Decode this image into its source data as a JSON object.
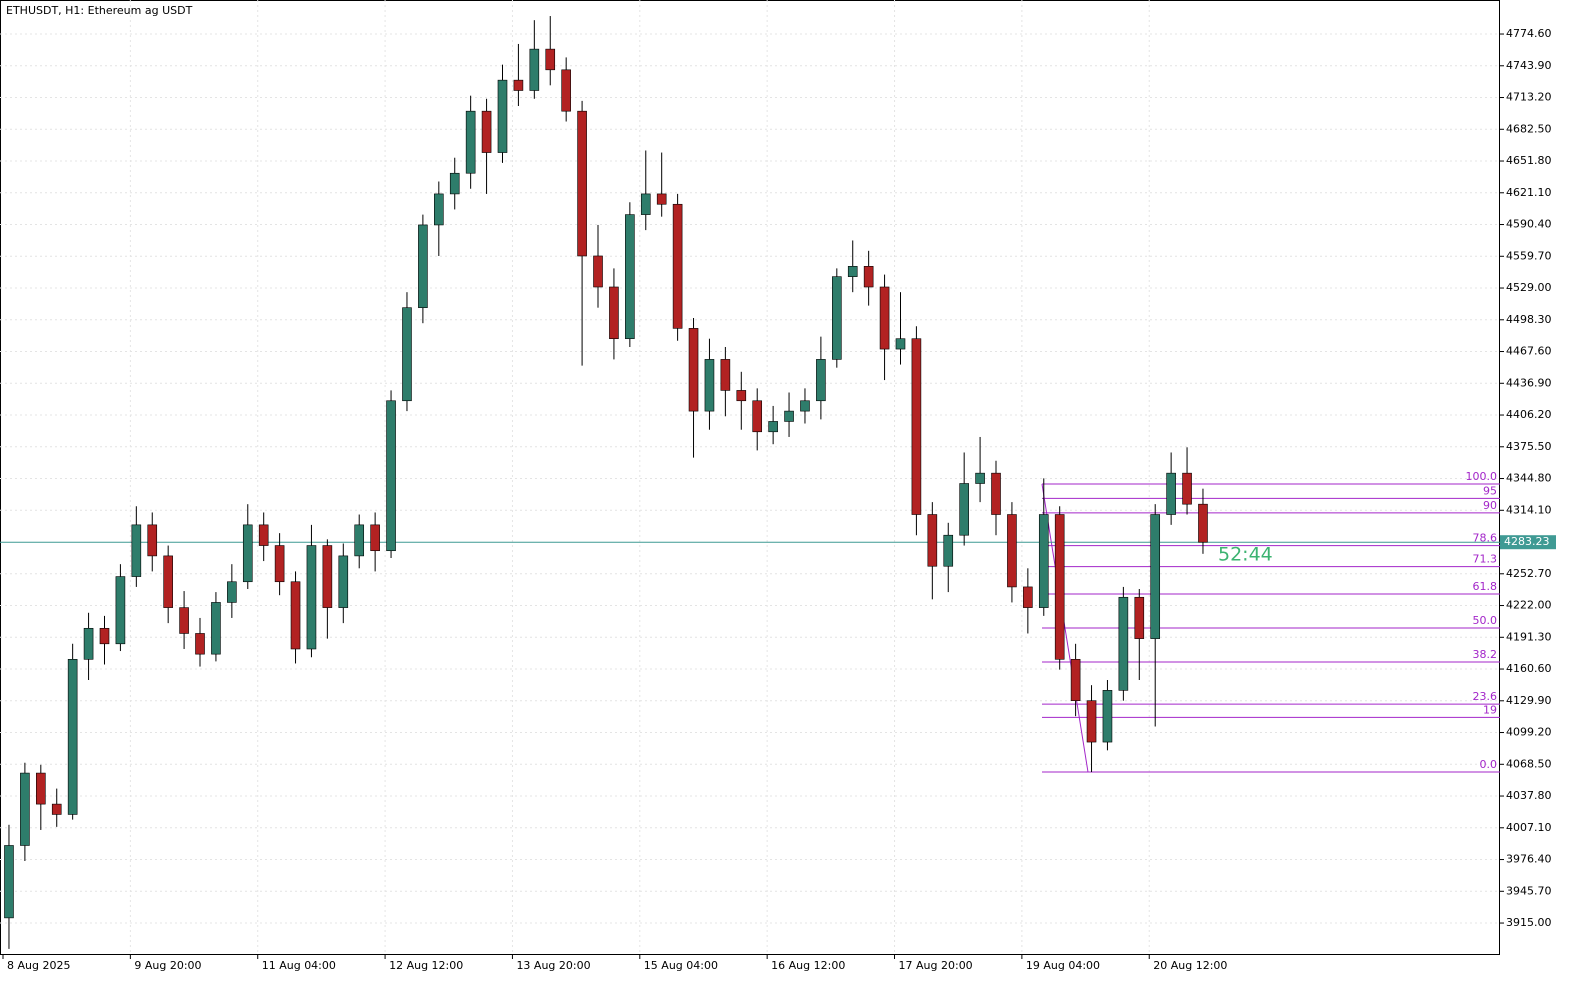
{
  "chart_data": {
    "type": "candlestick",
    "title": "ETHUSDT, H1:  Ethereum ag USDT",
    "up_color": "#2e7d6b",
    "down_color": "#b22222",
    "wick_color": "#000000",
    "ylim": [
      3884.1,
      4807.5
    ],
    "yticks": [
      {
        "value": 3915,
        "label": "3915.00"
      },
      {
        "value": 3945.7,
        "label": "3945.70"
      },
      {
        "value": 3976.4,
        "label": "3976.40"
      },
      {
        "value": 4007.1,
        "label": "4007.10"
      },
      {
        "value": 4037.8,
        "label": "4037.80"
      },
      {
        "value": 4068.5,
        "label": "4068.50"
      },
      {
        "value": 4099.2,
        "label": "4099.20"
      },
      {
        "value": 4129.9,
        "label": "4129.90"
      },
      {
        "value": 4160.6,
        "label": "4160.60"
      },
      {
        "value": 4191.3,
        "label": "4191.30"
      },
      {
        "value": 4222,
        "label": "4222.00"
      },
      {
        "value": 4252.7,
        "label": "4252.70"
      },
      {
        "value": 4314.1,
        "label": "4314.10"
      },
      {
        "value": 4344.8,
        "label": "4344.80"
      },
      {
        "value": 4375.5,
        "label": "4375.50"
      },
      {
        "value": 4406.2,
        "label": "4406.20"
      },
      {
        "value": 4436.9,
        "label": "4436.90"
      },
      {
        "value": 4467.6,
        "label": "4467.60"
      },
      {
        "value": 4498.3,
        "label": "4498.30"
      },
      {
        "value": 4529,
        "label": "4529.00"
      },
      {
        "value": 4559.7,
        "label": "4559.70"
      },
      {
        "value": 4590.4,
        "label": "4590.40"
      },
      {
        "value": 4621.1,
        "label": "4621.10"
      },
      {
        "value": 4651.8,
        "label": "4651.80"
      },
      {
        "value": 4682.5,
        "label": "4682.50"
      },
      {
        "value": 4713.2,
        "label": "4713.20"
      },
      {
        "value": 4743.9,
        "label": "4743.90"
      },
      {
        "value": 4774.6,
        "label": "4774.60"
      }
    ],
    "x_labels": [
      "8 Aug 2025",
      "9 Aug 20:00",
      "11 Aug 04:00",
      "12 Aug 12:00",
      "13 Aug 20:00",
      "15 Aug 04:00",
      "16 Aug 12:00",
      "17 Aug 20:00",
      "19 Aug 04:00",
      "20 Aug 12:00"
    ],
    "grid": true,
    "candles": [
      [
        3920,
        4010,
        3890,
        3990
      ],
      [
        3990,
        4070,
        3975,
        4060
      ],
      [
        4060,
        4068,
        4005,
        4030
      ],
      [
        4030,
        4045,
        4008,
        4020
      ],
      [
        4020,
        4185,
        4015,
        4170
      ],
      [
        4170,
        4215,
        4150,
        4200
      ],
      [
        4200,
        4212,
        4165,
        4185
      ],
      [
        4185,
        4262,
        4178,
        4250
      ],
      [
        4250,
        4318,
        4240,
        4300
      ],
      [
        4300,
        4312,
        4255,
        4270
      ],
      [
        4270,
        4280,
        4205,
        4220
      ],
      [
        4220,
        4236,
        4180,
        4195
      ],
      [
        4195,
        4210,
        4163,
        4175
      ],
      [
        4175,
        4235,
        4168,
        4225
      ],
      [
        4225,
        4262,
        4210,
        4245
      ],
      [
        4245,
        4320,
        4238,
        4300
      ],
      [
        4300,
        4312,
        4265,
        4280
      ],
      [
        4280,
        4292,
        4232,
        4245
      ],
      [
        4245,
        4255,
        4166,
        4180
      ],
      [
        4180,
        4300,
        4172,
        4280
      ],
      [
        4280,
        4286,
        4190,
        4220
      ],
      [
        4220,
        4282,
        4205,
        4270
      ],
      [
        4270,
        4310,
        4258,
        4300
      ],
      [
        4300,
        4312,
        4255,
        4275
      ],
      [
        4275,
        4430,
        4268,
        4420
      ],
      [
        4420,
        4525,
        4410,
        4510
      ],
      [
        4510,
        4600,
        4495,
        4590
      ],
      [
        4590,
        4632,
        4560,
        4620
      ],
      [
        4620,
        4655,
        4605,
        4640
      ],
      [
        4640,
        4715,
        4625,
        4700
      ],
      [
        4700,
        4712,
        4620,
        4660
      ],
      [
        4660,
        4745,
        4650,
        4730
      ],
      [
        4730,
        4765,
        4705,
        4720
      ],
      [
        4720,
        4788,
        4712,
        4760
      ],
      [
        4760,
        4792,
        4725,
        4740
      ],
      [
        4740,
        4752,
        4690,
        4700
      ],
      [
        4700,
        4710,
        4454,
        4560
      ],
      [
        4560,
        4590,
        4510,
        4530
      ],
      [
        4530,
        4548,
        4460,
        4480
      ],
      [
        4480,
        4612,
        4472,
        4600
      ],
      [
        4600,
        4662,
        4585,
        4620
      ],
      [
        4620,
        4660,
        4598,
        4610
      ],
      [
        4610,
        4620,
        4478,
        4490
      ],
      [
        4490,
        4500,
        4365,
        4410
      ],
      [
        4410,
        4480,
        4392,
        4460
      ],
      [
        4460,
        4472,
        4405,
        4430
      ],
      [
        4430,
        4448,
        4392,
        4420
      ],
      [
        4420,
        4432,
        4372,
        4390
      ],
      [
        4390,
        4415,
        4378,
        4400
      ],
      [
        4400,
        4428,
        4385,
        4410
      ],
      [
        4410,
        4432,
        4398,
        4420
      ],
      [
        4420,
        4482,
        4402,
        4460
      ],
      [
        4460,
        4548,
        4452,
        4540
      ],
      [
        4540,
        4575,
        4525,
        4550
      ],
      [
        4550,
        4565,
        4512,
        4530
      ],
      [
        4530,
        4542,
        4440,
        4470
      ],
      [
        4470,
        4525,
        4455,
        4480
      ],
      [
        4480,
        4492,
        4290,
        4310
      ],
      [
        4310,
        4322,
        4228,
        4260
      ],
      [
        4260,
        4302,
        4235,
        4290
      ],
      [
        4290,
        4370,
        4280,
        4340
      ],
      [
        4340,
        4385,
        4322,
        4350
      ],
      [
        4350,
        4362,
        4290,
        4310
      ],
      [
        4310,
        4322,
        4225,
        4240
      ],
      [
        4240,
        4258,
        4195,
        4220
      ],
      [
        4220,
        4345,
        4212,
        4310
      ],
      [
        4310,
        4318,
        4160,
        4170
      ],
      [
        4170,
        4185,
        4115,
        4130
      ],
      [
        4130,
        4145,
        4061,
        4090
      ],
      [
        4090,
        4150,
        4082,
        4140
      ],
      [
        4140,
        4240,
        4130,
        4230
      ],
      [
        4230,
        4238,
        4150,
        4190
      ],
      [
        4190,
        4320,
        4105,
        4310
      ],
      [
        4310,
        4370,
        4300,
        4350
      ],
      [
        4350,
        4375,
        4310,
        4320
      ],
      [
        4320,
        4335,
        4272,
        4283.23
      ]
    ],
    "price_line": {
      "value": 4283.23,
      "color": "#3f9a94"
    },
    "timer": "52:44",
    "fibonacci": {
      "color": "#a326c9",
      "levels": [
        {
          "label": "100.0",
          "value": 4339.5
        },
        {
          "label": "95",
          "value": 4325.6
        },
        {
          "label": "90",
          "value": 4311.6
        },
        {
          "label": "78.6",
          "value": 4279.9
        },
        {
          "label": "71.3",
          "value": 4259.6
        },
        {
          "label": "61.8",
          "value": 4233.1
        },
        {
          "label": "50.0",
          "value": 4200.3
        },
        {
          "label": "38.2",
          "value": 4167.4
        },
        {
          "label": "23.6",
          "value": 4126.7
        },
        {
          "label": "19",
          "value": 4113.9
        },
        {
          "label": "0.0",
          "value": 4061
        }
      ]
    }
  }
}
